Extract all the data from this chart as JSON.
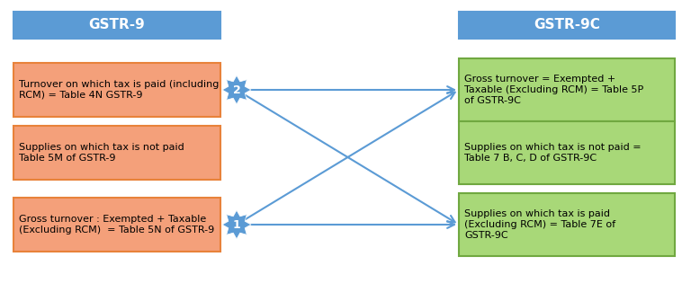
{
  "bg_color": "#ffffff",
  "header_color": "#5b9bd5",
  "header_text_color": "#ffffff",
  "left_box_color": "#f4a07a",
  "left_box_edge_color": "#e8823a",
  "right_box_color": "#a8d878",
  "right_box_edge_color": "#70a840",
  "arrow_color": "#5b9bd5",
  "badge_color": "#5b9bd5",
  "badge_text_color": "#ffffff",
  "left_header": "GSTR-9",
  "right_header": "GSTR-9C",
  "left_boxes": [
    "Turnover on which tax is paid (including\nRCM) = Table 4N GSTR-9",
    "Supplies on which tax is not paid\nTable 5M of GSTR-9",
    "Gross turnover : Exempted + Taxable\n(Excluding RCM)  = Table 5N of GSTR-9"
  ],
  "right_boxes": [
    "Gross turnover = Exempted +\nTaxable (Excluding RCM) = Table 5P\nof GSTR-9C",
    "Supplies on which tax is not paid =\nTable 7 B, C, D of GSTR-9C",
    "Supplies on which tax is paid\n(Excluding RCM) = Table 7E of\nGSTR-9C"
  ],
  "connections_draw": [
    [
      0,
      0,
      "2"
    ],
    [
      0,
      2,
      null
    ],
    [
      2,
      0,
      null
    ],
    [
      2,
      2,
      "1"
    ]
  ]
}
